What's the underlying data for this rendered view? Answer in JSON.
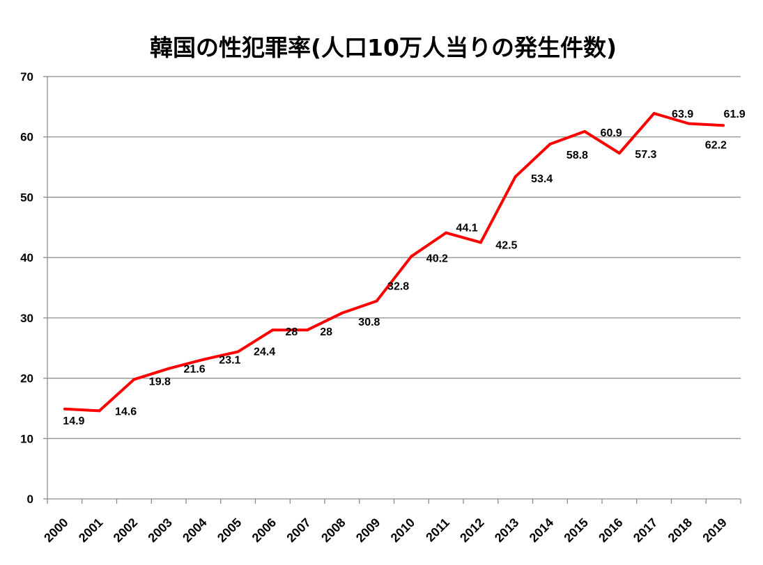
{
  "chart_data": {
    "type": "line",
    "title": "韓国の性犯罪率(人口10万人当りの発生件数)",
    "xlabel": "",
    "ylabel": "",
    "categories": [
      "2000",
      "2001",
      "2002",
      "2003",
      "2004",
      "2005",
      "2006",
      "2007",
      "2008",
      "2009",
      "2010",
      "2011",
      "2012",
      "2013",
      "2014",
      "2015",
      "2016",
      "2017",
      "2018",
      "2019"
    ],
    "series": [
      {
        "name": "性犯罪率",
        "color": "#ff0000",
        "values": [
          14.9,
          14.6,
          19.8,
          21.6,
          23.1,
          24.4,
          28,
          28,
          30.8,
          32.8,
          40.2,
          44.1,
          42.5,
          53.4,
          58.8,
          60.9,
          57.3,
          63.9,
          62.2,
          61.9
        ]
      }
    ],
    "data_labels": [
      "14.9",
      "14.6",
      "19.8",
      "21.6",
      "23.1",
      "24.4",
      "28",
      "28",
      "30.8",
      "32.8",
      "40.2",
      "44.1",
      "42.5",
      "53.4",
      "58.8",
      "60.9",
      "57.3",
      "63.9",
      "62.2",
      "61.9"
    ],
    "ylim": [
      0,
      70
    ],
    "yticks": [
      "0",
      "10",
      "20",
      "30",
      "40",
      "50",
      "60",
      "70"
    ],
    "grid": true,
    "legend": "none"
  }
}
